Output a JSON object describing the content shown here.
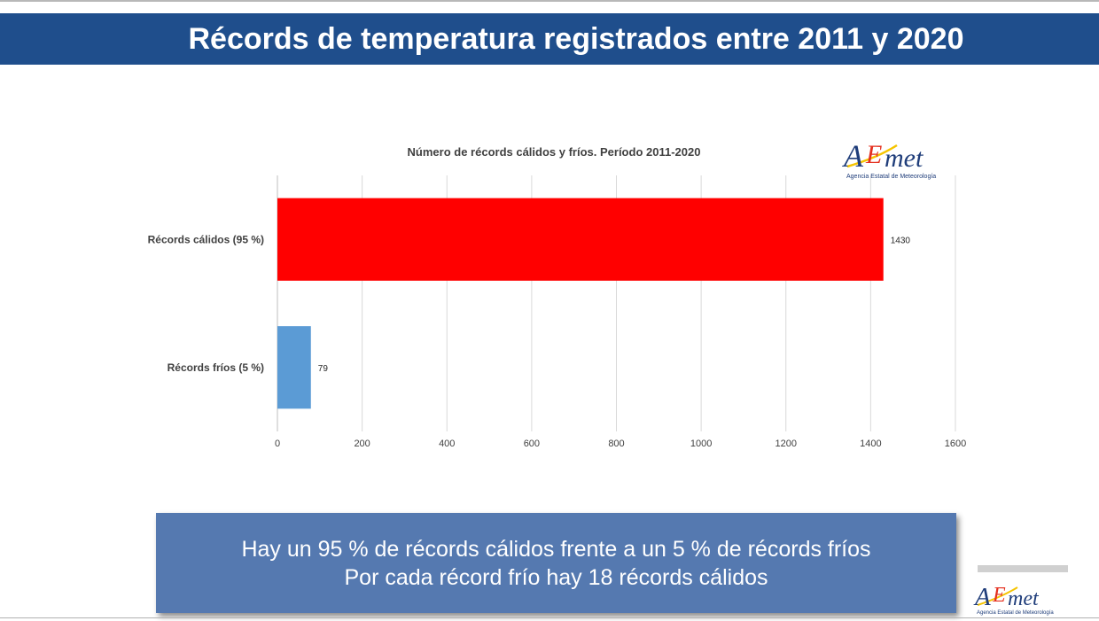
{
  "slide": {
    "title": "Récords de temperatura registrados entre 2011 y 2020",
    "summary_line1": "Hay un 95 % de récords cálidos frente a un 5 % de récords fríos",
    "summary_line2": "Por cada récord frío hay 18 récords cálidos"
  },
  "logo": {
    "text_parts": [
      "A",
      "E",
      "met"
    ],
    "caption": "Agencia Estatal de Meteorología",
    "colors": {
      "A": "#1f3d7a",
      "E": "#e4301f",
      "met": "#1f3d7a",
      "accent": "#f5c400"
    }
  },
  "colors": {
    "title_bar": "#1f4e8c",
    "summary_box": "#5579b0",
    "calidos": "#ff0000",
    "frios": "#5b9bd5"
  },
  "chart_data": {
    "type": "bar",
    "orientation": "horizontal",
    "title": "Número de récords cálidos y fríos. Período 2011-2020",
    "categories": [
      "Récords cálidos (95 %)",
      "Récords fríos (5 %)"
    ],
    "values": [
      1430,
      79
    ],
    "data_labels": [
      "1430",
      "79"
    ],
    "bar_colors": [
      "#ff0000",
      "#5b9bd5"
    ],
    "xlim": [
      0,
      1600
    ],
    "xticks": [
      0,
      200,
      400,
      600,
      800,
      1000,
      1200,
      1400,
      1600
    ],
    "grid": true,
    "legend": "none"
  }
}
